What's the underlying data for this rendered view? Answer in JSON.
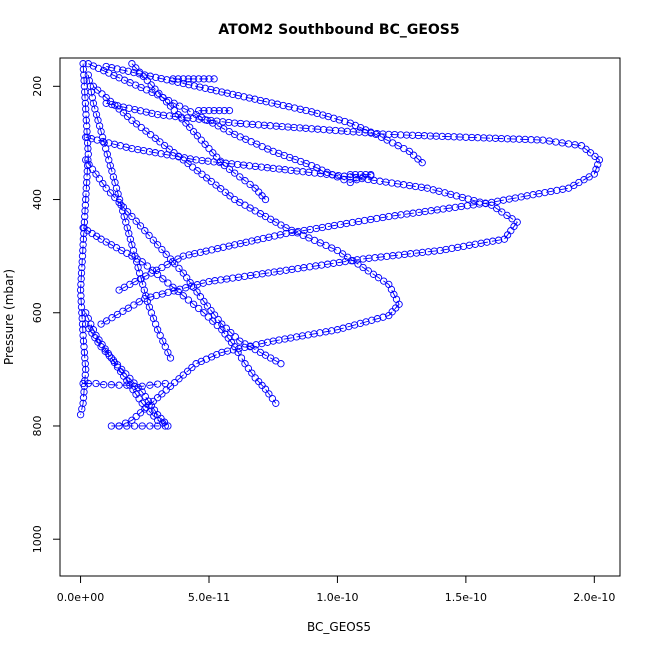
{
  "chart_data": {
    "type": "scatter",
    "title": "ATOM2 Southbound BC_GEOS5",
    "xlabel": "BC_GEOS5",
    "ylabel": "Pressure (mbar)",
    "xlim": [
      -8e-12,
      2.1e-10
    ],
    "ylim": [
      1065,
      150
    ],
    "y_reversed": true,
    "x_ticks": [
      0,
      5e-11,
      1e-10,
      1.5e-10,
      2e-10
    ],
    "x_tick_labels": [
      "0.0e+00",
      "5.0e-11",
      "1.0e-10",
      "1.5e-10",
      "2.0e-10"
    ],
    "y_ticks": [
      200,
      400,
      600,
      800,
      1000
    ],
    "y_tick_labels": [
      "200",
      "400",
      "600",
      "800",
      "1000"
    ],
    "marker": "open-circle",
    "line_style": "dashed",
    "color": "#0000ff",
    "grid": false,
    "series": [
      {
        "x": [
          1e-11,
          3e-11,
          6e-11,
          9e-11,
          1.2e-10,
          1.5e-10,
          1.8e-10,
          1.95e-10,
          2.02e-10,
          2e-10,
          1.9e-10,
          1.6e-10,
          1.2e-10,
          8e-11,
          4e-11,
          1.5e-11
        ],
        "y": [
          230,
          250,
          265,
          275,
          285,
          290,
          295,
          305,
          330,
          355,
          380,
          405,
          430,
          460,
          500,
          560
        ]
      },
      {
        "x": [
          2e-12,
          2e-11,
          4.5e-11,
          7.5e-11,
          1.05e-10,
          1.35e-10,
          1.6e-10,
          1.7e-10,
          1.65e-10,
          1.4e-10,
          1.1e-10,
          8e-11,
          5e-11,
          2.5e-11,
          8e-12
        ],
        "y": [
          290,
          310,
          330,
          345,
          360,
          380,
          410,
          440,
          470,
          490,
          505,
          525,
          545,
          575,
          620
        ]
      },
      {
        "x": [
          5e-12,
          2e-11,
          4e-11,
          6e-11,
          8e-11,
          1e-10,
          1.1e-10,
          1.2e-10,
          1.24e-10,
          1.2e-10,
          1e-10,
          7.5e-11,
          5.5e-11,
          4.5e-11,
          4e-11,
          3.5e-11,
          3e-11,
          2.5e-11,
          2e-11,
          1.5e-11
        ],
        "y": [
          200,
          260,
          330,
          400,
          450,
          490,
          520,
          550,
          585,
          605,
          630,
          650,
          670,
          690,
          710,
          730,
          750,
          770,
          790,
          800
        ]
      },
      {
        "x": [
          3e-12,
          1.5e-11,
          3e-11,
          4.5e-11,
          6e-11,
          7.5e-11,
          9e-11,
          1e-10,
          1.05e-10,
          1.1e-10,
          1.13e-10
        ],
        "y": [
          160,
          185,
          215,
          250,
          285,
          315,
          340,
          360,
          370,
          360,
          358
        ]
      },
      {
        "x": [
          1e-11,
          2.5e-11,
          4e-11,
          5.5e-11,
          7e-11,
          9e-11,
          1.05e-10,
          1.15e-10,
          1.28e-10,
          1.33e-10
        ],
        "y": [
          165,
          180,
          195,
          210,
          225,
          245,
          265,
          285,
          315,
          335
        ]
      },
      {
        "x": [
          2e-12,
          1e-11,
          2e-11,
          3e-11,
          4e-11,
          4.8e-11,
          5.5e-11,
          6.2e-11,
          7e-11,
          7.8e-11
        ],
        "y": [
          330,
          380,
          430,
          480,
          530,
          580,
          620,
          650,
          670,
          690
        ]
      },
      {
        "x": [
          1e-12,
          8e-12,
          1.6e-11,
          2.4e-11,
          3.2e-11,
          4e-11,
          4.8e-11,
          5.5e-11,
          6e-11,
          6.4e-11,
          6.8e-11,
          7.2e-11,
          7.6e-11
        ],
        "y": [
          450,
          470,
          490,
          510,
          540,
          570,
          600,
          630,
          660,
          690,
          715,
          735,
          760
        ]
      },
      {
        "x": [
          2e-12,
          6e-12,
          1.2e-11,
          1.8e-11,
          2.4e-11,
          3e-11,
          3.4e-11,
          3e-11,
          2.4e-11,
          1.6e-11,
          8e-12,
          2e-12
        ],
        "y": [
          600,
          640,
          680,
          720,
          760,
          790,
          800,
          780,
          740,
          700,
          660,
          620
        ]
      },
      {
        "x": [
          3e-12,
          5e-12,
          8e-12,
          1.1e-11,
          1.4e-11,
          1.7e-11,
          2e-11,
          2.3e-11,
          2.6e-11,
          3e-11,
          3.5e-11
        ],
        "y": [
          180,
          230,
          280,
          330,
          380,
          430,
          480,
          530,
          580,
          630,
          680
        ]
      },
      {
        "x": [
          1e-12,
          3e-12,
          6e-12,
          9e-12,
          1.2e-11,
          1.5e-11,
          1.8e-11,
          2.1e-11,
          2.4e-11,
          2.7e-11,
          3e-11,
          3.3e-11
        ],
        "y": [
          725,
          725,
          725,
          727,
          727,
          728,
          728,
          730,
          730,
          728,
          726,
          725
        ]
      },
      {
        "x": [
          1.2e-11,
          1.5e-11,
          1.8e-11,
          2.1e-11,
          2.4e-11,
          2.7e-11,
          3e-11,
          3.3e-11
        ],
        "y": [
          800,
          800,
          800,
          800,
          800,
          800,
          800,
          800
        ]
      },
      {
        "x": [
          1e-12,
          2e-12,
          3e-12,
          2e-12,
          1e-12,
          0,
          1e-12,
          2e-12,
          1e-12,
          0
        ],
        "y": [
          160,
          240,
          320,
          400,
          480,
          560,
          640,
          700,
          760,
          780
        ]
      },
      {
        "x": [
          2e-11,
          2.6e-11,
          3.2e-11,
          3.8e-11,
          4.4e-11,
          5e-11,
          5.6e-11,
          6.2e-11,
          6.8e-11,
          7.2e-11
        ],
        "y": [
          160,
          190,
          220,
          250,
          280,
          310,
          340,
          360,
          380,
          400
        ]
      },
      {
        "x": [
          3.6e-11,
          4e-11,
          4.4e-11,
          4.8e-11,
          5.2e-11
        ],
        "y": [
          187,
          187,
          187,
          187,
          187
        ]
      },
      {
        "x": [
          4.6e-11,
          5e-11,
          5.4e-11,
          5.8e-11
        ],
        "y": [
          243,
          243,
          243,
          243
        ]
      },
      {
        "x": [
          1.05e-10,
          1.07e-10,
          1.09e-10,
          1.11e-10,
          1.13e-10
        ],
        "y": [
          356,
          356,
          356,
          356,
          356
        ]
      }
    ]
  }
}
